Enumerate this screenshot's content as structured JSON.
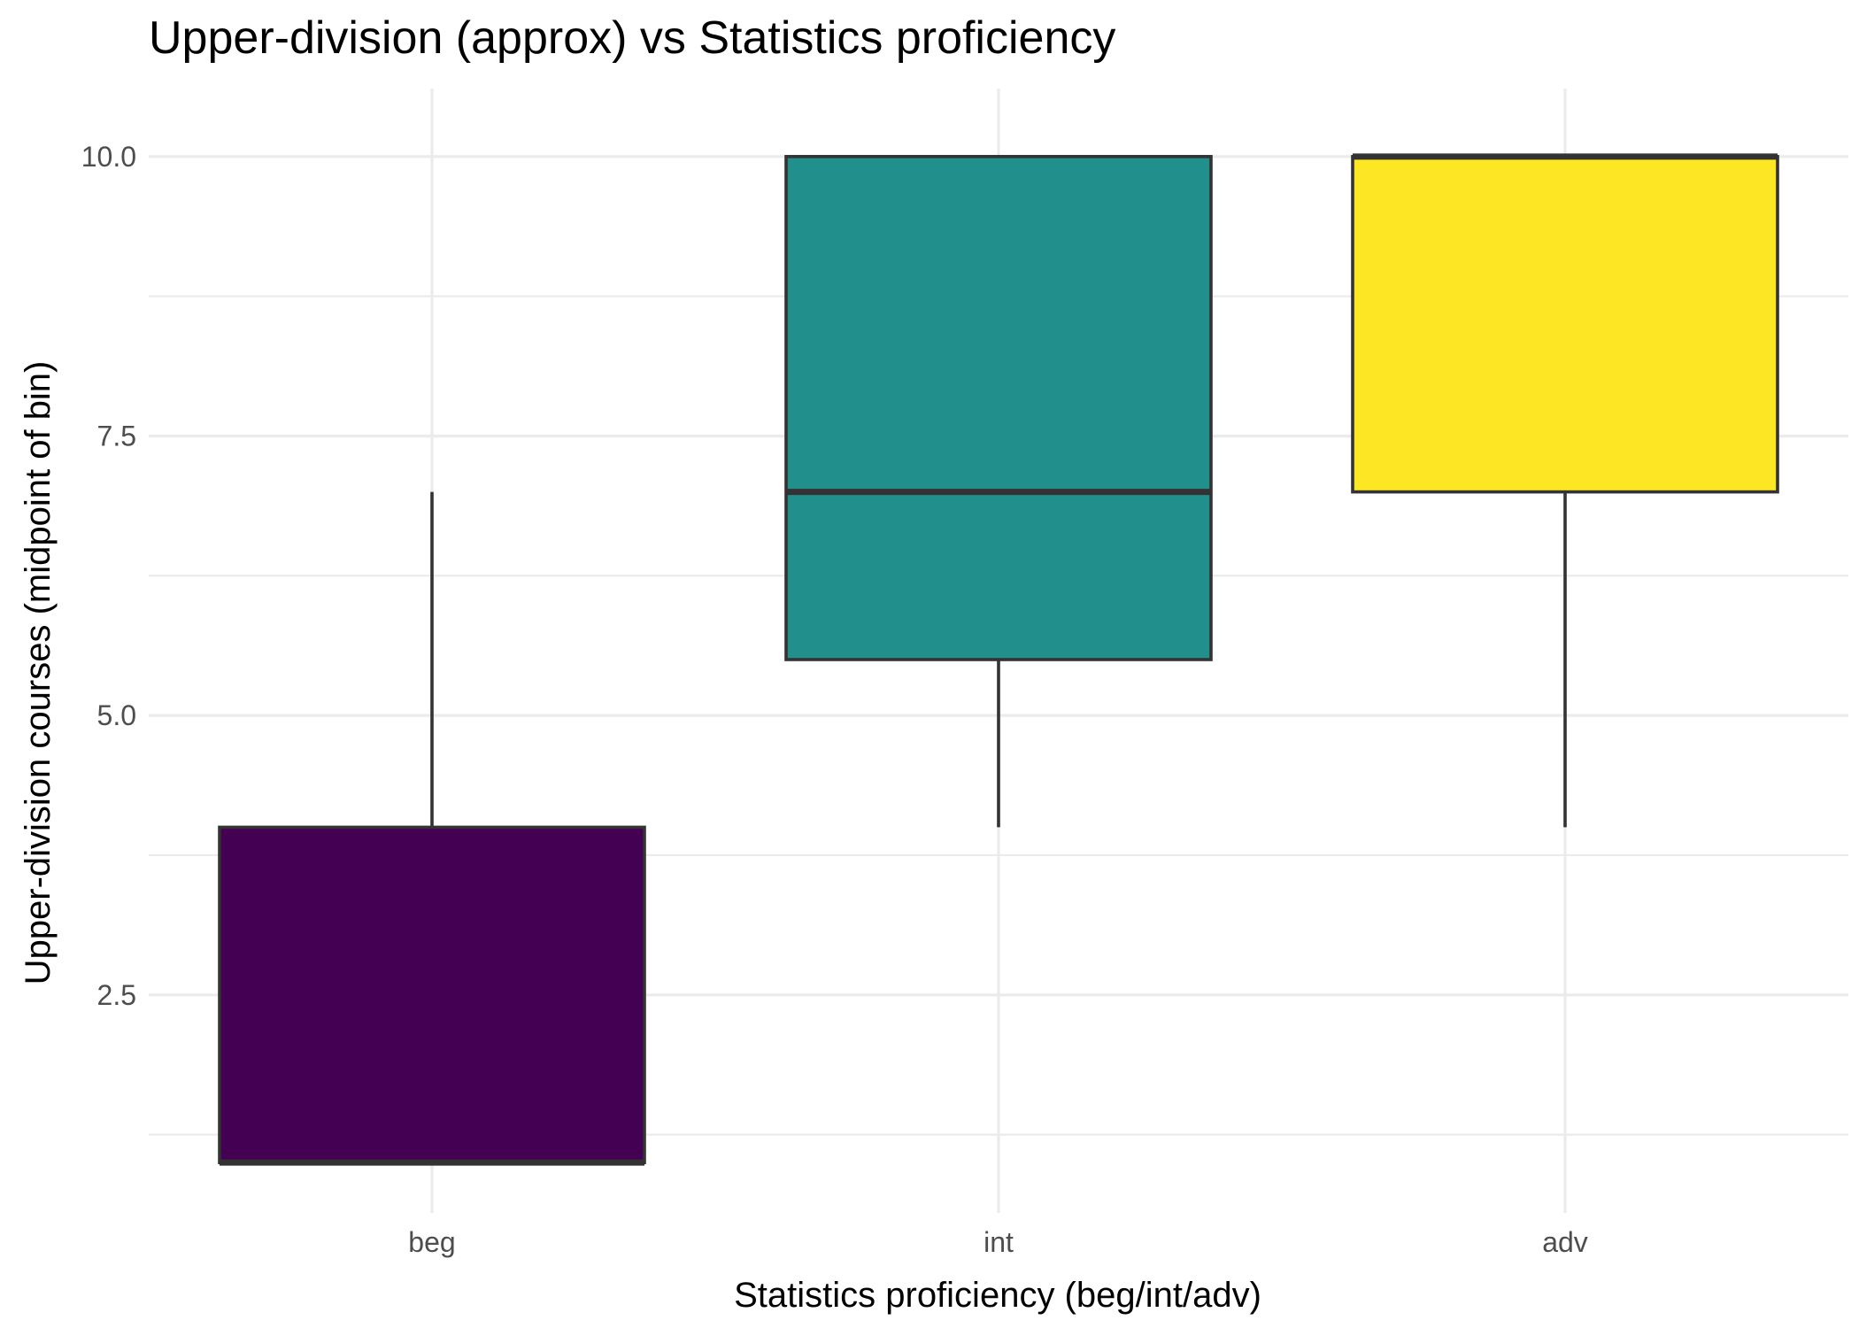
{
  "chart_data": {
    "type": "boxplot",
    "title": "Upper-division (approx) vs Statistics proficiency",
    "xlabel": "Statistics proficiency (beg/int/adv)",
    "ylabel": "Upper-division courses (midpoint of bin)",
    "categories": [
      "beg",
      "int",
      "adv"
    ],
    "y_ticks": [
      "2.5",
      "5.0",
      "7.5",
      "10.0"
    ],
    "y_tick_values": [
      2.5,
      5.0,
      7.5,
      10.0
    ],
    "ylim": [
      0.55,
      10.45
    ],
    "grid": true,
    "legend": "none",
    "boxes": [
      {
        "category": "beg",
        "whisker_low": 1.0,
        "q1": 1.0,
        "median": 1.0,
        "q3": 4.0,
        "whisker_high": 7.0,
        "color": "#440154"
      },
      {
        "category": "int",
        "whisker_low": 4.0,
        "q1": 5.5,
        "median": 7.0,
        "q3": 10.0,
        "whisker_high": 10.0,
        "color": "#21908C"
      },
      {
        "category": "adv",
        "whisker_low": 4.0,
        "q1": 7.0,
        "median": 10.0,
        "q3": 10.0,
        "whisker_high": 10.0,
        "color": "#FDE725"
      }
    ]
  }
}
